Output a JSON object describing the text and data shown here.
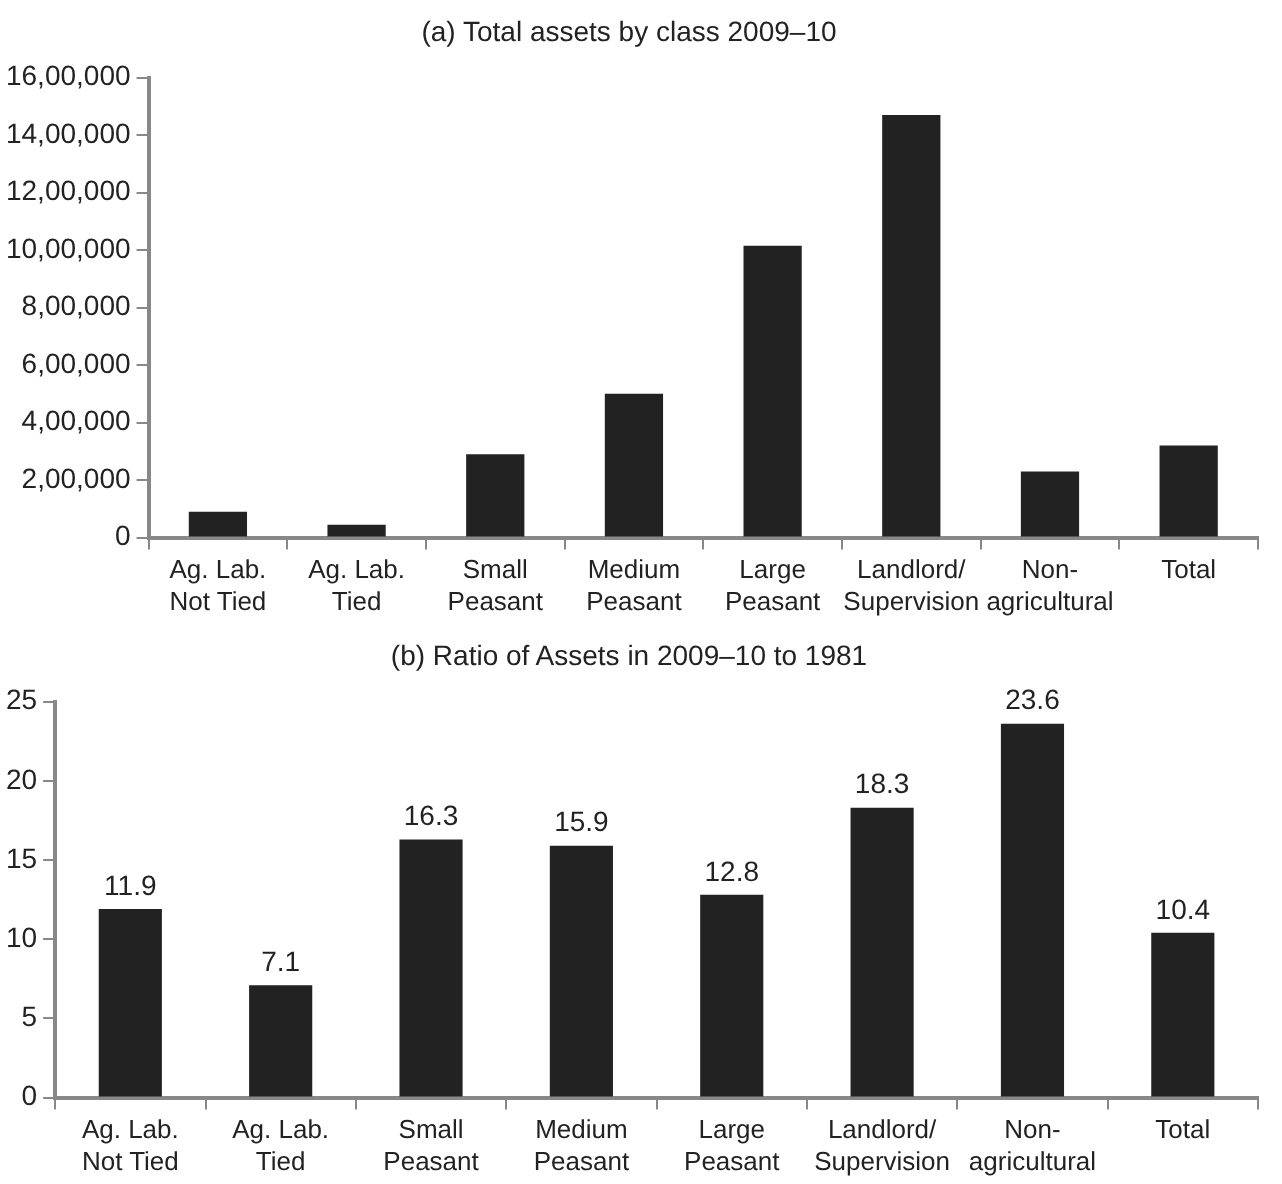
{
  "chart_data": [
    {
      "type": "bar",
      "title": "(a) Total assets by class 2009–10",
      "categories": [
        "Ag. Lab.\nNot Tied",
        "Ag. Lab.\nTied",
        "Small\nPeasant",
        "Medium\nPeasant",
        "Large\nPeasant",
        "Landlord/\nSupervision",
        "Non-\nagricultural",
        "Total"
      ],
      "values": [
        90000,
        45000,
        290000,
        500000,
        1015000,
        1470000,
        230000,
        320000
      ],
      "color": "#222222",
      "ylim": [
        0,
        1600000
      ],
      "yticks": [
        0,
        {
          "value": 200000,
          "label": "2,00,000"
        },
        {
          "value": 400000,
          "label": "4,00,000"
        },
        {
          "value": 600000,
          "label": "6,00,000"
        },
        {
          "value": 800000,
          "label": "8,00,000"
        },
        {
          "value": 1000000,
          "label": "10,00,000"
        },
        {
          "value": 1200000,
          "label": "12,00,000"
        },
        {
          "value": 1400000,
          "label": "14,00,000"
        },
        {
          "value": 1600000,
          "label": "16,00,000"
        }
      ],
      "grid": false,
      "legend": false
    },
    {
      "type": "bar",
      "title": "(b) Ratio of Assets in 2009–10 to 1981",
      "categories": [
        "Ag. Lab.\nNot Tied",
        "Ag. Lab.\nTied",
        "Small\nPeasant",
        "Medium\nPeasant",
        "Large\nPeasant",
        "Landlord/\nSupervision",
        "Non-\nagricultural",
        "Total"
      ],
      "values": [
        11.9,
        7.1,
        16.3,
        15.9,
        12.8,
        18.3,
        23.6,
        10.4
      ],
      "color": "#222222",
      "ylim": [
        0,
        25
      ],
      "yticks": [
        0,
        5,
        10,
        15,
        20,
        25
      ],
      "grid": false,
      "legend": false,
      "data_labels": true
    }
  ]
}
